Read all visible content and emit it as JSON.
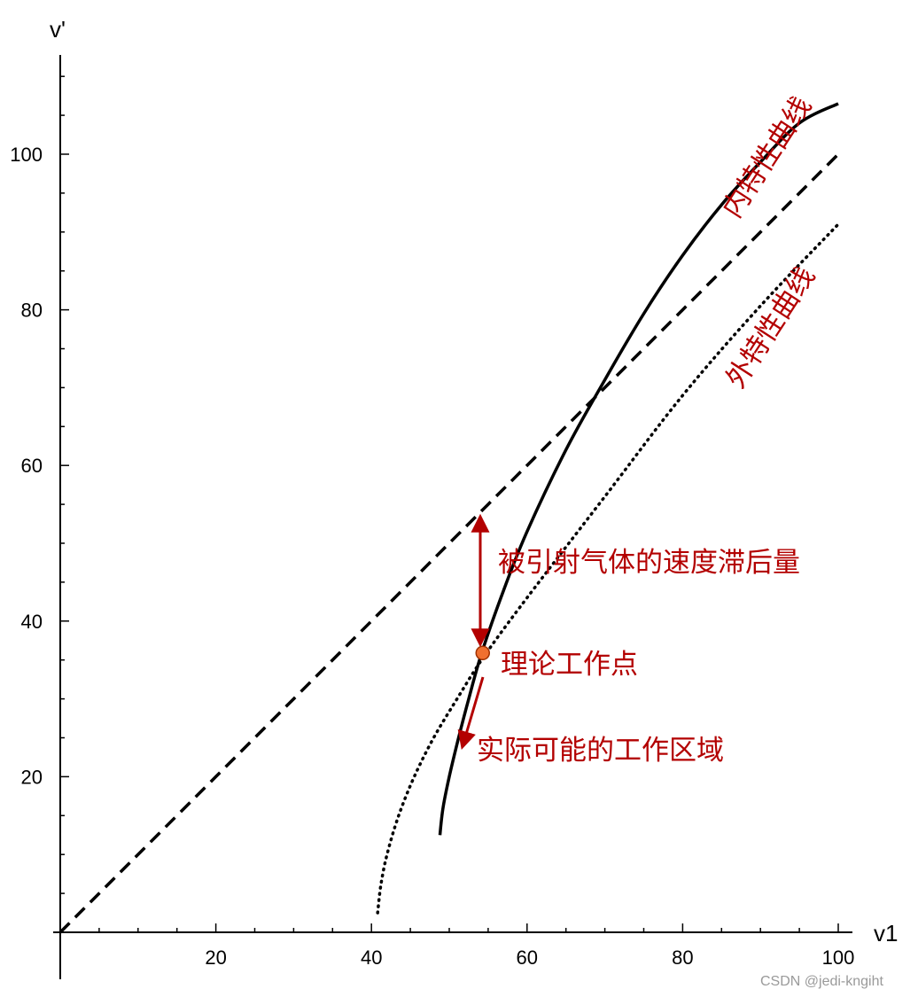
{
  "chart_data": {
    "type": "line",
    "title": "",
    "xlabel": "v1",
    "ylabel": "v'",
    "xlim": [
      0,
      100
    ],
    "ylim": [
      0,
      110
    ],
    "x_ticks": [
      20,
      40,
      60,
      80,
      100
    ],
    "y_ticks": [
      20,
      40,
      60,
      80,
      100
    ],
    "series": [
      {
        "style": "dashed",
        "color": "#000000",
        "points": [
          [
            0,
            0
          ],
          [
            20,
            20
          ],
          [
            40,
            40
          ],
          [
            55,
            55
          ],
          [
            80,
            80
          ],
          [
            100,
            100
          ]
        ]
      },
      {
        "style": "solid",
        "color": "#000000",
        "points": [
          [
            48.8,
            12.5
          ],
          [
            49.2,
            16
          ],
          [
            50,
            20
          ],
          [
            51.2,
            25
          ],
          [
            52.5,
            30
          ],
          [
            54.2,
            36
          ],
          [
            57,
            44
          ],
          [
            60,
            51.5
          ],
          [
            65,
            62
          ],
          [
            70,
            71
          ],
          [
            75,
            79.5
          ],
          [
            80,
            87
          ],
          [
            85,
            93.5
          ],
          [
            90,
            99
          ],
          [
            95,
            104
          ],
          [
            100,
            106.5
          ]
        ]
      },
      {
        "style": "dotted",
        "color": "#000000",
        "points": [
          [
            40.8,
            2.5
          ],
          [
            41.2,
            6
          ],
          [
            42,
            10
          ],
          [
            43.5,
            15
          ],
          [
            45.5,
            20
          ],
          [
            48,
            25
          ],
          [
            51,
            30
          ],
          [
            54.5,
            35.5
          ],
          [
            60,
            43
          ],
          [
            70,
            56
          ],
          [
            80,
            69
          ],
          [
            90,
            80.5
          ],
          [
            100,
            91
          ]
        ]
      }
    ],
    "annotations": {
      "inner_curve": "内特性曲线",
      "outer_curve": "外特性曲线",
      "lag": "被引射气体的速度滞后量",
      "point": "理论工作点",
      "region": "实际可能的工作区域"
    },
    "point": {
      "x": 54.3,
      "y": 35.9,
      "color": "#f07030"
    },
    "arrow_color": "#b30000",
    "watermark": "CSDN @jedi-kngiht"
  }
}
